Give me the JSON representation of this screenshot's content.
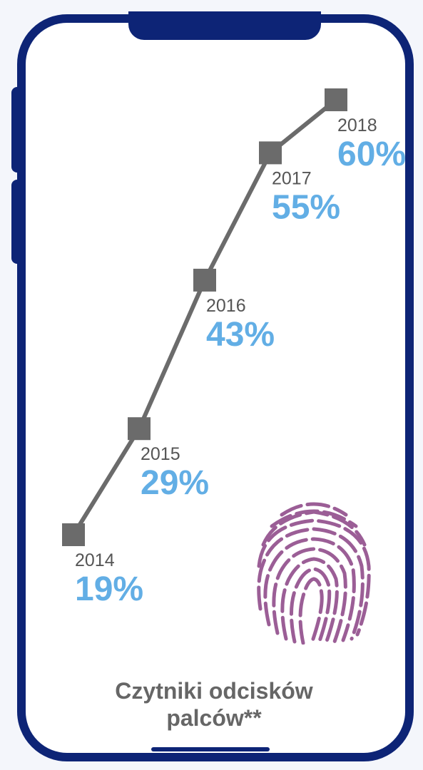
{
  "colors": {
    "frame": "#0D2476",
    "line": "#6B6B6B",
    "marker": "#6B6B6B",
    "year_text": "#555555",
    "value_text": "#62AEE5",
    "caption_text": "#666666",
    "fingerprint": "#9B5E96"
  },
  "icon": "fingerprint-icon",
  "caption": {
    "line1": "Czytniki odcisków",
    "line2": "palców**"
  },
  "chart_data": {
    "type": "line",
    "title": "",
    "xlabel": "",
    "ylabel": "",
    "categories": [
      "2014",
      "2015",
      "2016",
      "2017",
      "2018"
    ],
    "values": [
      19,
      29,
      43,
      55,
      60
    ],
    "value_labels": [
      "19%",
      "29%",
      "43%",
      "55%",
      "60%"
    ],
    "unit": "%",
    "grid": false,
    "legend": "none"
  }
}
